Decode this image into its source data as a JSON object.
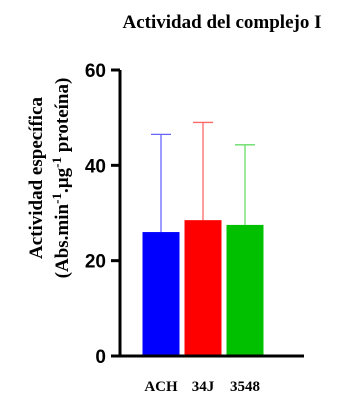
{
  "chart_data": {
    "type": "bar",
    "title": "Actividad del complejo I",
    "ylabel_line1": "Actividad específica",
    "ylabel_line2_parts": [
      "(Abs.min",
      "-1",
      ".µg",
      "-1",
      " proteína)"
    ],
    "categories": [
      "ACH",
      "34J",
      "3548"
    ],
    "values": [
      26,
      28.5,
      27.5
    ],
    "error_upper": [
      20.5,
      20.5,
      16.8
    ],
    "colors": [
      "#0000ff",
      "#ff0000",
      "#00c000"
    ],
    "error_colors": [
      "#6666ff",
      "#ff6666",
      "#66dd66"
    ],
    "ylim": [
      0,
      60
    ],
    "yticks": [
      0,
      20,
      40,
      60
    ],
    "grid": false,
    "legend": "none"
  }
}
